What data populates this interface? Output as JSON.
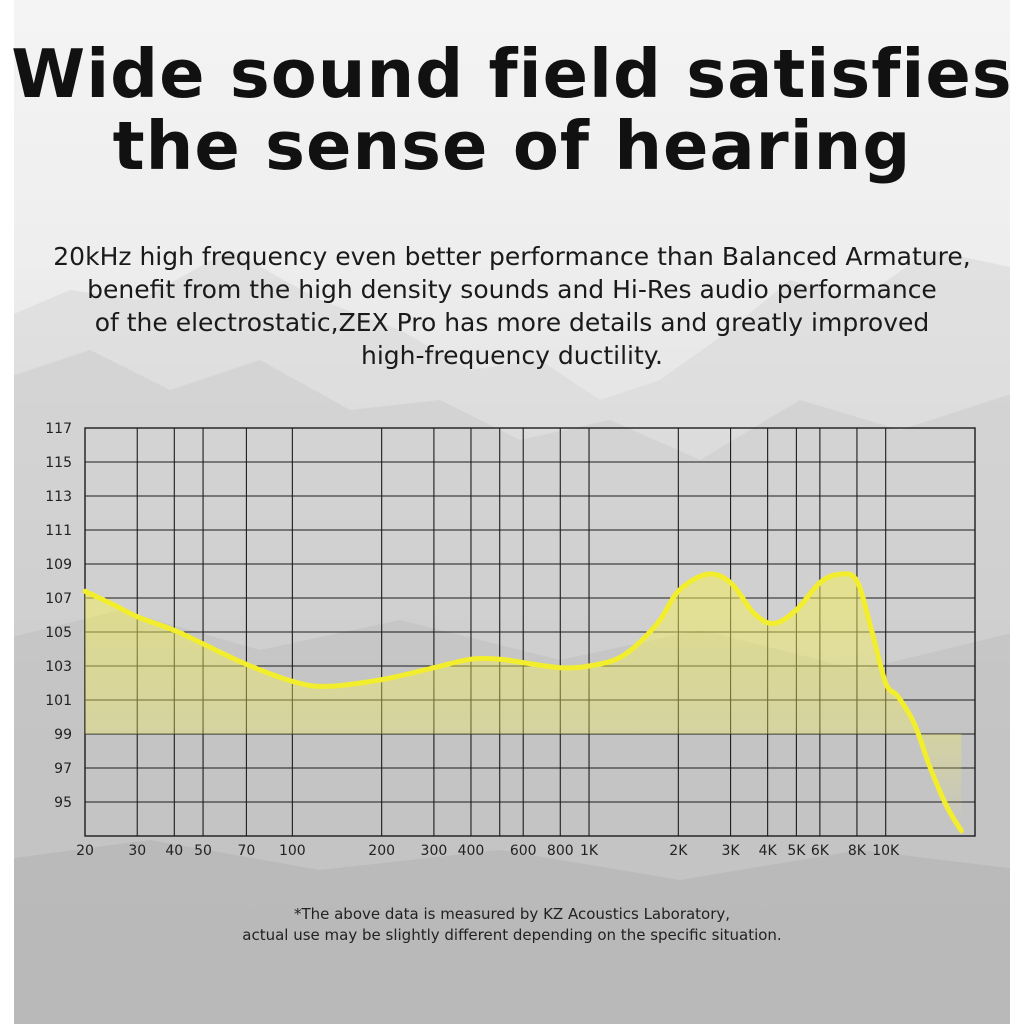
{
  "header": {
    "title_line1": "Wide sound field satisfies",
    "title_line2": "the sense of hearing"
  },
  "description": {
    "line1": "20kHz high frequency even better performance than Balanced Armature,",
    "line2": "benefit from the high density sounds and Hi-Res audio performance",
    "line3": "of the electrostatic,ZEX Pro has more details and greatly improved",
    "line4": "high-frequency ductility."
  },
  "footnote": {
    "line1": "*The above data is measured by KZ Acoustics Laboratory,",
    "line2": "actual use may be slightly different depending on the specific situation."
  },
  "colors": {
    "curve": "#f2ee2e",
    "fill": "#f4ef5a",
    "grid": "#1c1c1c"
  },
  "chart_data": {
    "type": "area",
    "title": "",
    "xlabel": "",
    "ylabel": "",
    "x_scale": "log",
    "xlim": [
      20,
      20000
    ],
    "ylim": [
      93,
      117
    ],
    "grid": true,
    "y_ticks": [
      117,
      115,
      113,
      111,
      109,
      107,
      105,
      103,
      101,
      99,
      97,
      95
    ],
    "x_ticks": [
      {
        "value": 20,
        "label": "20"
      },
      {
        "value": 30,
        "label": "30"
      },
      {
        "value": 40,
        "label": "40"
      },
      {
        "value": 50,
        "label": "50"
      },
      {
        "value": 70,
        "label": "70"
      },
      {
        "value": 100,
        "label": "100"
      },
      {
        "value": 200,
        "label": "200"
      },
      {
        "value": 300,
        "label": "300"
      },
      {
        "value": 400,
        "label": "400"
      },
      {
        "value": 600,
        "label": "600"
      },
      {
        "value": 800,
        "label": "800"
      },
      {
        "value": 1000,
        "label": "1K"
      },
      {
        "value": 2000,
        "label": "2K"
      },
      {
        "value": 3000,
        "label": "3K"
      },
      {
        "value": 4000,
        "label": "4K"
      },
      {
        "value": 5000,
        "label": "5K"
      },
      {
        "value": 6000,
        "label": "6K"
      },
      {
        "value": 8000,
        "label": "8K"
      },
      {
        "value": 10000,
        "label": "10K"
      }
    ],
    "extra_gridlines_x": [
      500,
      20000
    ],
    "series": [
      {
        "points": [
          [
            20,
            107.4
          ],
          [
            25,
            106.6
          ],
          [
            30,
            105.9
          ],
          [
            40,
            105.1
          ],
          [
            50,
            104.3
          ],
          [
            70,
            103.1
          ],
          [
            100,
            102.1
          ],
          [
            130,
            101.8
          ],
          [
            200,
            102.2
          ],
          [
            300,
            102.9
          ],
          [
            400,
            103.4
          ],
          [
            500,
            103.4
          ],
          [
            600,
            103.2
          ],
          [
            800,
            102.9
          ],
          [
            1000,
            103.0
          ],
          [
            1300,
            103.6
          ],
          [
            1700,
            105.5
          ],
          [
            2000,
            107.4
          ],
          [
            2500,
            108.4
          ],
          [
            3000,
            107.9
          ],
          [
            3600,
            106.1
          ],
          [
            4200,
            105.5
          ],
          [
            5000,
            106.3
          ],
          [
            6000,
            107.9
          ],
          [
            7000,
            108.4
          ],
          [
            8000,
            108.0
          ],
          [
            9000,
            105.0
          ],
          [
            10000,
            102.0
          ],
          [
            11000,
            101.2
          ],
          [
            12500,
            99.6
          ],
          [
            14000,
            97.2
          ],
          [
            16000,
            94.8
          ],
          [
            18000,
            93.3
          ]
        ]
      }
    ]
  }
}
